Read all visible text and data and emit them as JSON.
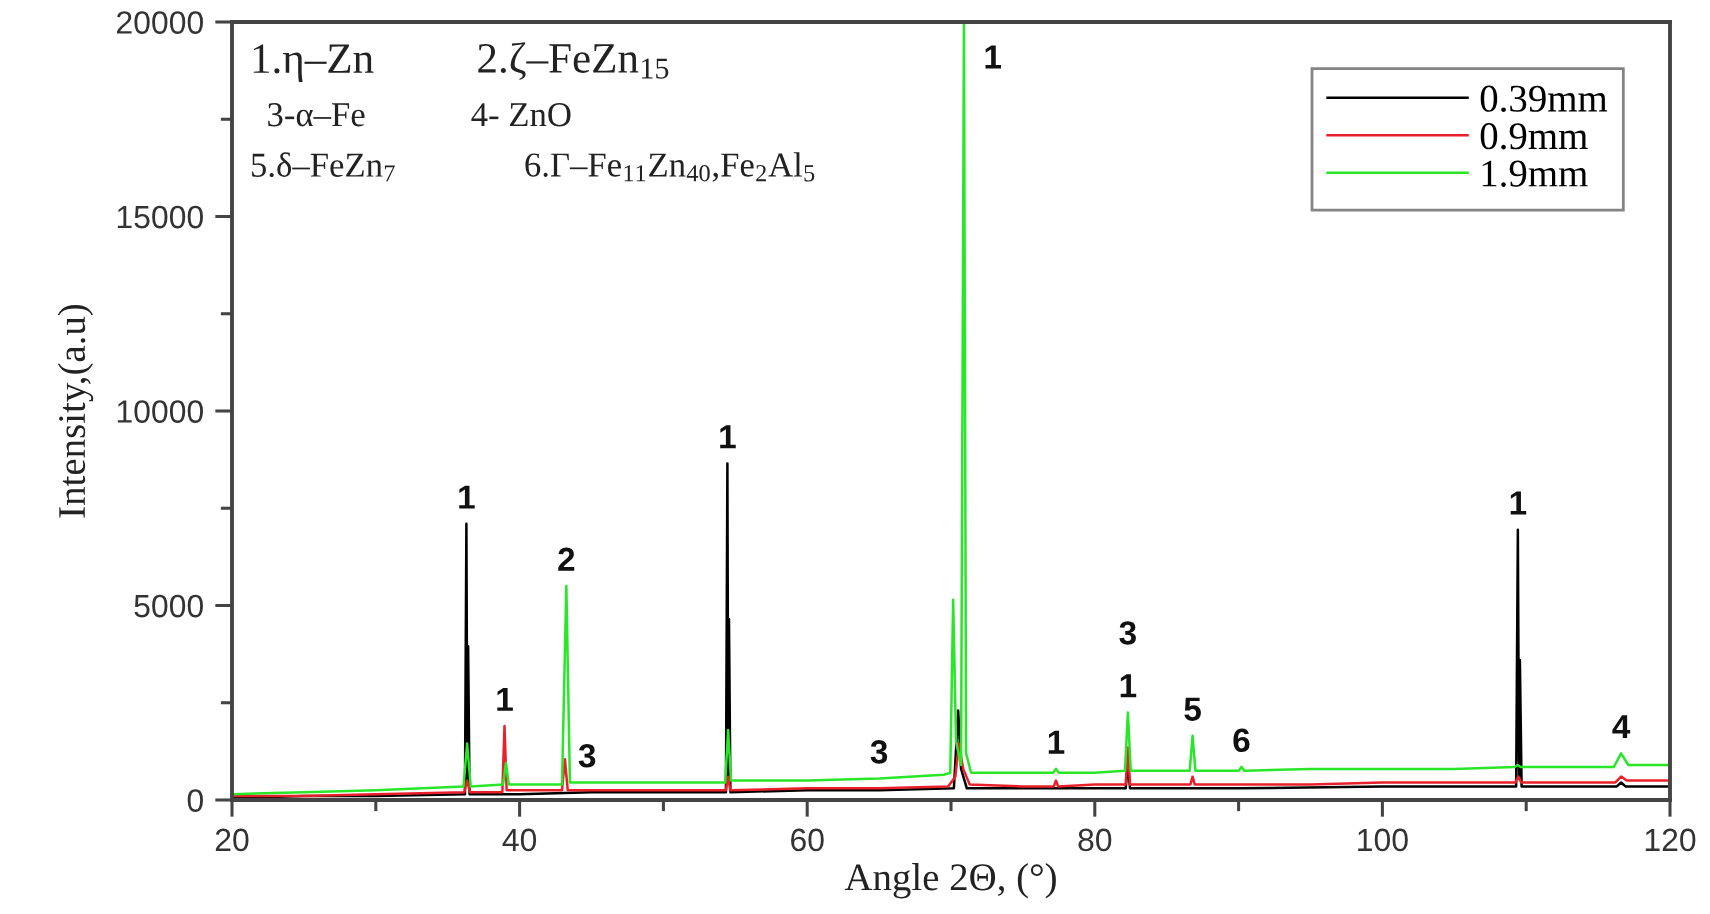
{
  "chart_data": {
    "type": "line",
    "xlabel": "Angle 2Θ, (°)",
    "ylabel": "Intensity,(a.u)",
    "xlim": [
      20,
      120
    ],
    "ylim": [
      0,
      20000
    ],
    "xticks": [
      20,
      {
        "value": 30,
        "label": null
      },
      40,
      {
        "value": 50,
        "label": null
      },
      60,
      {
        "value": 70,
        "label": null
      },
      80,
      {
        "value": 90,
        "label": null
      },
      100,
      {
        "value": 110,
        "label": null
      },
      120
    ],
    "yticks": [
      0,
      {
        "value": 2500,
        "label": null
      },
      5000,
      {
        "value": 7500,
        "label": null
      },
      10000,
      {
        "value": 12500,
        "label": null
      },
      15000,
      {
        "value": 17500,
        "label": null
      },
      20000
    ],
    "grid": false,
    "legend": "top right",
    "series": [
      {
        "name": "0.39mm",
        "color": "#000000",
        "x": [
          20,
          25,
          30,
          36.2,
          36.3,
          36.37,
          36.42,
          36.52,
          40,
          45,
          50,
          54.35,
          54.45,
          54.51,
          54.56,
          54.66,
          60,
          65,
          70.2,
          70.5,
          70.7,
          71.1,
          75,
          82.15,
          82.3,
          82.45,
          90,
          100,
          105,
          109.3,
          109.42,
          109.5,
          109.56,
          109.68,
          113,
          116.3,
          116.6,
          116.9,
          120
        ],
        "values": [
          50,
          100,
          100,
          150,
          7100,
          400,
          3950,
          150,
          150,
          200,
          200,
          200,
          8650,
          500,
          4650,
          200,
          250,
          250,
          300,
          2300,
          800,
          300,
          300,
          300,
          900,
          300,
          300,
          350,
          350,
          350,
          6950,
          600,
          3600,
          350,
          350,
          350,
          450,
          350,
          350
        ]
      },
      {
        "name": "0.9mm",
        "color": "#e8202a",
        "x": [
          20,
          25,
          30,
          36.15,
          36.35,
          36.55,
          38.8,
          38.95,
          39.1,
          42.95,
          43.15,
          43.35,
          48,
          54.35,
          54.5,
          54.65,
          60,
          65,
          69.8,
          70.3,
          70.55,
          70.85,
          71.3,
          75,
          77.15,
          77.3,
          77.45,
          80,
          82.15,
          82.3,
          82.45,
          84,
          86.65,
          86.8,
          86.95,
          90,
          95,
          100,
          105,
          109.25,
          109.45,
          109.65,
          113,
          116.2,
          116.6,
          117,
          120
        ],
        "values": [
          100,
          100,
          150,
          200,
          500,
          200,
          200,
          1900,
          250,
          250,
          1050,
          250,
          250,
          250,
          600,
          250,
          300,
          300,
          350,
          600,
          1450,
          800,
          400,
          350,
          350,
          500,
          350,
          400,
          400,
          1350,
          400,
          400,
          400,
          600,
          400,
          400,
          400,
          450,
          450,
          450,
          600,
          450,
          450,
          450,
          600,
          500,
          500
        ]
      },
      {
        "name": "1.9mm",
        "color": "#29e629",
        "x": [
          20,
          25,
          30,
          36.1,
          36.35,
          36.6,
          38.85,
          39.05,
          39.25,
          42.95,
          43.25,
          43.5,
          44.7,
          48,
          54.3,
          54.5,
          54.7,
          60,
          65,
          69.5,
          69.95,
          70.15,
          70.35,
          70.7,
          70.9,
          71.05,
          71.4,
          75,
          77.1,
          77.3,
          77.5,
          80,
          82.1,
          82.3,
          82.5,
          84,
          86.6,
          86.8,
          87.0,
          90.0,
          90.2,
          90.4,
          95,
          100,
          105,
          109.2,
          109.4,
          109.6,
          113,
          116.1,
          116.6,
          117.1,
          120
        ],
        "values": [
          150,
          200,
          250,
          350,
          1450,
          350,
          400,
          950,
          400,
          400,
          5500,
          450,
          450,
          450,
          450,
          1800,
          500,
          500,
          550,
          650,
          700,
          5150,
          1500,
          900,
          20000,
          1200,
          700,
          700,
          700,
          800,
          700,
          700,
          750,
          2250,
          750,
          750,
          750,
          1650,
          750,
          750,
          850,
          750,
          800,
          800,
          800,
          850,
          900,
          850,
          850,
          850,
          1200,
          900,
          900
        ]
      }
    ],
    "annotations": [
      "1.η–Zn",
      "2.ζ–FeZn$_{15}$",
      "3-α–Fe",
      "4- ZnO",
      "5.δ–FeZn$_{7}$",
      "6.Γ–Fe$_{11}$Zn$_{40}$,Fe$_{2}$Al$_{5}$",
      {
        "text": "1",
        "x": 36.3,
        "y": 7100
      },
      {
        "text": "1",
        "x": 38.95,
        "y": 1900
      },
      {
        "text": "2",
        "x": 43.25,
        "y": 5500
      },
      {
        "text": "3",
        "x": 44.7,
        "y": 450
      },
      {
        "text": "1",
        "x": 54.45,
        "y": 8650
      },
      {
        "text": "3",
        "x": 65,
        "y": 550
      },
      {
        "text": "1",
        "x": 70.9,
        "y": 20000
      },
      {
        "text": "1",
        "x": 77.3,
        "y": 800
      },
      {
        "text": "1",
        "x": 82.3,
        "y": 2250
      },
      {
        "text": "3",
        "x": 82.3,
        "y": 2250
      },
      {
        "text": "5",
        "x": 86.8,
        "y": 1650
      },
      {
        "text": "6",
        "x": 90.2,
        "y": 850
      },
      {
        "text": "1",
        "x": 109.42,
        "y": 6950
      },
      {
        "text": "4",
        "x": 116.6,
        "y": 1200
      }
    ]
  }
}
